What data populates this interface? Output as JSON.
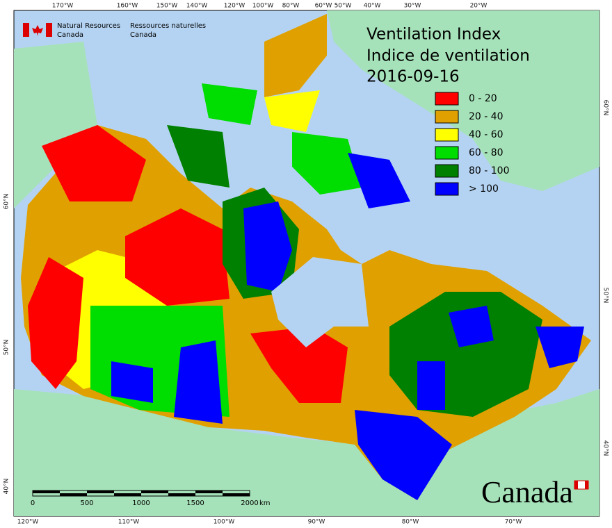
{
  "title": {
    "line1": "Ventilation Index",
    "line2": "Indice de ventilation",
    "date": "2016-09-16"
  },
  "agency": {
    "en": [
      "Natural Resources",
      "Canada"
    ],
    "fr": [
      "Ressources naturelles",
      "Canada"
    ]
  },
  "legend": [
    {
      "label": "0 - 20",
      "color": "#ff0000"
    },
    {
      "label": "20 - 40",
      "color": "#e0a000"
    },
    {
      "label": "40 - 60",
      "color": "#ffff00"
    },
    {
      "label": "60 - 80",
      "color": "#00dd00"
    },
    {
      "label": "80 - 100",
      "color": "#008000"
    },
    {
      "label": "> 100",
      "color": "#0000ff"
    }
  ],
  "graticule": {
    "top": [
      "170°W",
      "160°W",
      "150°W",
      "140°W",
      "120°W",
      "100°W",
      "80°W",
      "60°W",
      "50°W",
      "40°W",
      "30°W",
      "20°W"
    ],
    "bottom": [
      "120°W",
      "110°W",
      "100°W",
      "90°W",
      "80°W",
      "70°W"
    ],
    "left": [
      "60°N",
      "50°N",
      "40°N"
    ],
    "right": [
      "60°N",
      "50°N",
      "40°N"
    ]
  },
  "scale_bar": {
    "ticks": [
      "0",
      "500",
      "1000",
      "1500",
      "2000"
    ],
    "unit": "km"
  },
  "wordmark": "Canada"
}
